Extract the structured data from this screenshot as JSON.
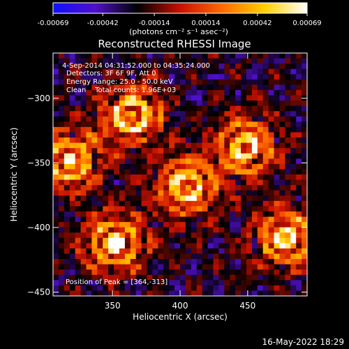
{
  "colorbar": {
    "ticks": [
      "-0.00069",
      "-0.00042",
      "-0.00014",
      "0.00014",
      "0.00042",
      "0.00069"
    ],
    "tick_values": [
      -0.00069,
      -0.00042,
      -0.00014,
      0.00014,
      0.00042,
      0.00069
    ],
    "range": [
      -0.00069,
      0.00069
    ],
    "unit_label": "(photons cm⁻² s⁻¹ asec⁻²)",
    "colormap": [
      "#1010ff",
      "#5010c8",
      "#000000",
      "#c81000",
      "#ff6a00",
      "#ffd000",
      "#ffffff"
    ]
  },
  "chart_data": {
    "type": "heatmap",
    "title": "Reconstructed RHESSI Image",
    "xlabel": "Heliocentric X (arcsec)",
    "ylabel": "Heliocentric Y (arcsec)",
    "xlim": [
      306,
      494
    ],
    "ylim": [
      -453,
      -265
    ],
    "xticks": [
      350,
      400,
      450
    ],
    "yticks": [
      -300,
      -350,
      -400,
      -450
    ],
    "grid": false,
    "annotations": [
      "4-Sep-2014 04:31:52.000 to 04:35:24.000",
      "Detectors: 3F 6F 9F, Att 0",
      "Energy Range: 25.0 - 50.0 keV",
      "Clean    Total counts: 1.96E+03"
    ],
    "peak_label": "Position of Peak = [364,-313]",
    "sources": [
      {
        "x": 364,
        "y": -313
      },
      {
        "x": 405,
        "y": -368
      },
      {
        "x": 448,
        "y": -338
      },
      {
        "x": 478,
        "y": -408
      },
      {
        "x": 352,
        "y": -412
      },
      {
        "x": 318,
        "y": -348
      }
    ]
  },
  "footer": {
    "timestamp": "16-May-2022 18:29"
  }
}
